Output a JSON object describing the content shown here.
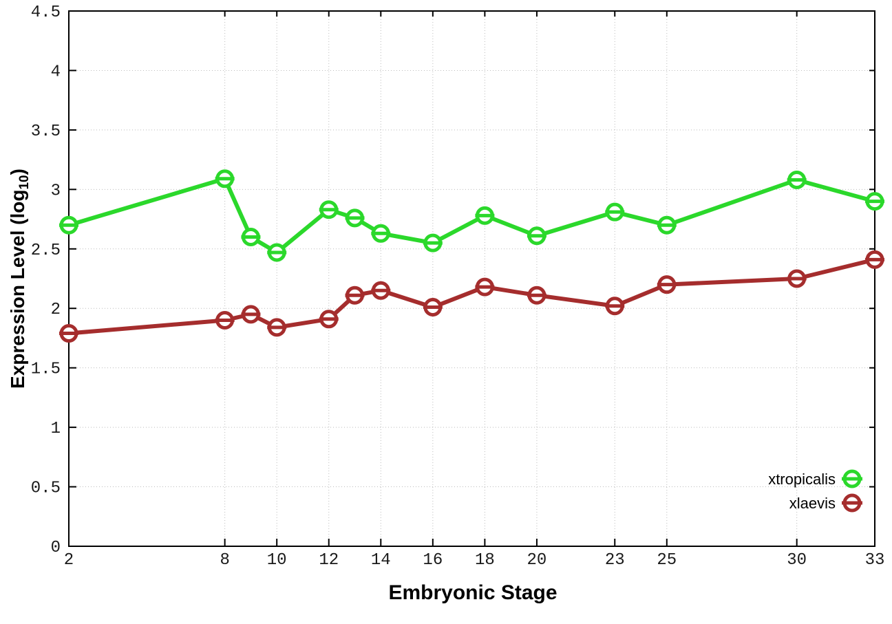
{
  "chart_data": {
    "type": "line",
    "xlabel": "Embryonic Stage",
    "ylabel": "Expression Level (log10)",
    "ylabel_parts": {
      "prefix": "Expression Level (log",
      "sub": "10",
      "suffix": ")"
    },
    "x": [
      2,
      8,
      9,
      10,
      12,
      13,
      14,
      16,
      18,
      20,
      23,
      25,
      30,
      33
    ],
    "series": [
      {
        "name": "xtropicalis",
        "color": "#2bd82b",
        "values": [
          2.7,
          3.09,
          2.6,
          2.47,
          2.83,
          2.76,
          2.63,
          2.55,
          2.78,
          2.61,
          2.81,
          2.7,
          3.08,
          2.9
        ]
      },
      {
        "name": "xlaevis",
        "color": "#a52d2d",
        "values": [
          1.79,
          1.9,
          1.95,
          1.84,
          1.91,
          2.11,
          2.15,
          2.01,
          2.18,
          2.11,
          2.02,
          2.2,
          2.25,
          2.41
        ]
      }
    ],
    "x_ticks": [
      2,
      8,
      10,
      12,
      14,
      16,
      18,
      20,
      23,
      25,
      30,
      33
    ],
    "x_tick_labels": [
      "2",
      "8",
      "10",
      "12",
      "14",
      "16",
      "18",
      "20",
      "23",
      "25",
      "30",
      "33"
    ],
    "y_ticks": [
      0,
      0.5,
      1,
      1.5,
      2,
      2.5,
      3,
      3.5,
      4,
      4.5
    ],
    "y_tick_labels": [
      "0",
      "0.5",
      "1",
      "1.5",
      "2",
      "2.5",
      "3",
      "3.5",
      "4",
      "4.5"
    ],
    "xlim": [
      2,
      33
    ],
    "ylim": [
      0,
      4.5
    ],
    "grid": true,
    "grid_color": "#bbbbbb",
    "border_color": "#000000",
    "legend_position": "bottom-right",
    "marker": "open-circle-hline"
  }
}
